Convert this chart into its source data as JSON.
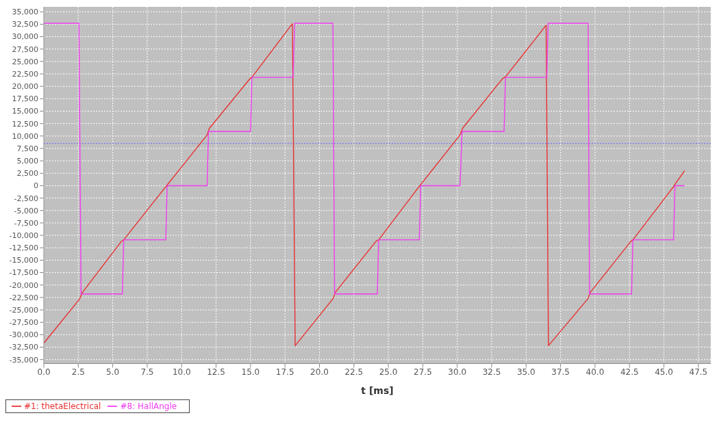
{
  "chart_data": {
    "type": "line",
    "xlabel": "t [ms]",
    "xlim": [
      0,
      48.4
    ],
    "ylim": [
      -35800,
      36000
    ],
    "xticks": [
      {
        "value": 0,
        "label": "0.0"
      },
      2.5,
      {
        "value": 5,
        "label": "5.0"
      },
      7.5,
      {
        "value": 10,
        "label": "10.0"
      },
      12.5,
      {
        "value": 15,
        "label": "15.0"
      },
      17.5,
      {
        "value": 20,
        "label": "20.0"
      },
      22.5,
      {
        "value": 25,
        "label": "25.0"
      },
      27.5,
      {
        "value": 30,
        "label": "30.0"
      },
      32.5,
      {
        "value": 35,
        "label": "35.0"
      },
      37.5,
      {
        "value": 40,
        "label": "40.0"
      },
      42.5,
      {
        "value": 45,
        "label": "45.0"
      },
      47.5
    ],
    "yticks": [
      {
        "value": 35000,
        "label": "35,000"
      },
      {
        "value": 32500,
        "label": "32,500"
      },
      {
        "value": 30000,
        "label": "30,000"
      },
      {
        "value": 27500,
        "label": "27,500"
      },
      {
        "value": 25000,
        "label": "25,000"
      },
      {
        "value": 22500,
        "label": "22,500"
      },
      {
        "value": 20000,
        "label": "20,000"
      },
      {
        "value": 17500,
        "label": "17,500"
      },
      {
        "value": 15000,
        "label": "15,000"
      },
      {
        "value": 12500,
        "label": "12,500"
      },
      {
        "value": 10000,
        "label": "10,000"
      },
      {
        "value": 7500,
        "label": "7,500"
      },
      {
        "value": 5000,
        "label": "5,000"
      },
      {
        "value": 2500,
        "label": "2,500"
      },
      0,
      {
        "value": -2500,
        "label": "-2,500"
      },
      {
        "value": -5000,
        "label": "-5,000"
      },
      {
        "value": -7500,
        "label": "-7,500"
      },
      {
        "value": -10000,
        "label": "-10,000"
      },
      {
        "value": -12500,
        "label": "-12,500"
      },
      {
        "value": -15000,
        "label": "-15,000"
      },
      {
        "value": -17500,
        "label": "-17,500"
      },
      {
        "value": -20000,
        "label": "-20,000"
      },
      {
        "value": -22500,
        "label": "-22,500"
      },
      {
        "value": -25000,
        "label": "-25,000"
      },
      {
        "value": -27500,
        "label": "-27,500"
      },
      {
        "value": -30000,
        "label": "-30,000"
      },
      {
        "value": -32500,
        "label": "-32,500"
      },
      {
        "value": -35000,
        "label": "-35,000"
      }
    ],
    "grid": true,
    "legend": "bottom",
    "marker": "none",
    "line_style": "solid",
    "ref_lines": [
      {
        "axis": "y",
        "value": 8500,
        "color": "#6666ff",
        "line_style": "dotted"
      }
    ],
    "series": [
      {
        "name": "#1: thetaElectrical",
        "color": "#e83030",
        "x": [
          0,
          2.6,
          2.8,
          5.6,
          5.8,
          8.85,
          9.0,
          11.85,
          12.0,
          14.95,
          15.15,
          18.04,
          18.24,
          21.0,
          21.15,
          24.1,
          24.3,
          27.2,
          27.4,
          30.2,
          30.4,
          33.3,
          33.5,
          36.45,
          36.62,
          39.5,
          39.65,
          42.6,
          42.75,
          45.7,
          45.85,
          46.5
        ],
        "values": [
          -31700,
          -22800,
          -21500,
          -11300,
          -10900,
          -200,
          300,
          10200,
          11500,
          21500,
          22000,
          32600,
          -32200,
          -22700,
          -21500,
          -11200,
          -10900,
          -300,
          400,
          10200,
          11600,
          21600,
          21900,
          32300,
          -32200,
          -22700,
          -21500,
          -11200,
          -10900,
          -200,
          500,
          3000
        ]
      },
      {
        "name": "#8: HallAngle",
        "color": "#f03cf0",
        "x": [
          0,
          2.55,
          2.7,
          5.7,
          5.8,
          8.85,
          8.95,
          11.85,
          11.95,
          15.0,
          15.1,
          18.09,
          18.2,
          20.98,
          21.1,
          24.2,
          24.3,
          27.25,
          27.35,
          30.2,
          30.35,
          33.4,
          33.5,
          36.5,
          36.6,
          39.5,
          39.6,
          42.65,
          42.75,
          45.7,
          45.8,
          46.5
        ],
        "values": [
          32700,
          32700,
          -21800,
          -21800,
          -10900,
          -10900,
          0,
          0,
          10900,
          10900,
          21800,
          21800,
          32700,
          32700,
          -21800,
          -21800,
          -10900,
          -10900,
          0,
          0,
          10900,
          10900,
          21800,
          21800,
          32700,
          32700,
          -21800,
          -21800,
          -10900,
          -10900,
          0,
          0
        ]
      }
    ]
  }
}
